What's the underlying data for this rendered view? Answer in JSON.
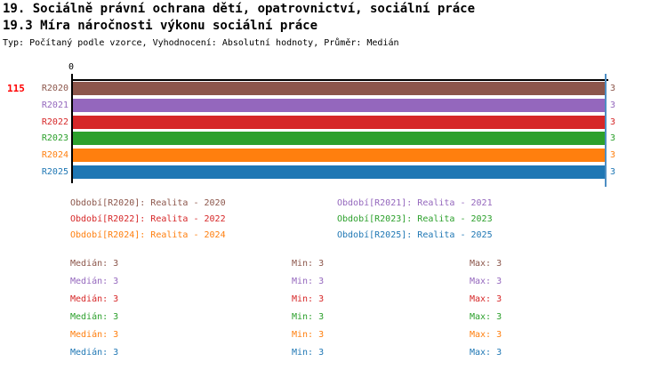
{
  "header": {
    "title_line1": "19. Sociálně právní ochrana dětí, opatrovnictví, sociální práce",
    "title_line2": "19.3 Míra náročnosti výkonu sociální práce",
    "meta_line": "Typ: Počítaný podle vzorce, Vyhodnocení: Absolutní hodnoty, Průměr: Medián"
  },
  "indicator_number": "115",
  "palette": [
    "#8c564b",
    "#9467bd",
    "#d62728",
    "#2ca02c",
    "#ff7f0e",
    "#1f77b4"
  ],
  "colors": {
    "indicator_number": "#ff0000",
    "axis": "#000000",
    "max_guide_line": "#4d8ec3",
    "background": "#ffffff"
  },
  "axis": {
    "zero_label": "0"
  },
  "chart_data": {
    "type": "bar",
    "orientation": "horizontal",
    "title": "19.3 Míra náročnosti výkonu sociální práce",
    "categories": [
      "R2020",
      "R2021",
      "R2022",
      "R2023",
      "R2024",
      "R2025"
    ],
    "values": [
      3,
      3,
      3,
      3,
      3,
      3
    ],
    "xlim": [
      0,
      3
    ],
    "x_tick_labels": [
      "0"
    ],
    "grid": false,
    "legend_position": "bottom",
    "series_stats": [
      {
        "category": "R2020",
        "median": 3,
        "min": 3,
        "max": 3
      },
      {
        "category": "R2021",
        "median": 3,
        "min": 3,
        "max": 3
      },
      {
        "category": "R2022",
        "median": 3,
        "min": 3,
        "max": 3
      },
      {
        "category": "R2023",
        "median": 3,
        "min": 3,
        "max": 3
      },
      {
        "category": "R2024",
        "median": 3,
        "min": 3,
        "max": 3
      },
      {
        "category": "R2025",
        "median": 3,
        "min": 3,
        "max": 3
      }
    ]
  },
  "legend": {
    "items": [
      {
        "label": "Období[R2020]: Realita - 2020"
      },
      {
        "label": "Období[R2021]: Realita - 2021"
      },
      {
        "label": "Období[R2022]: Realita - 2022"
      },
      {
        "label": "Období[R2023]: Realita - 2023"
      },
      {
        "label": "Období[R2024]: Realita - 2024"
      },
      {
        "label": "Období[R2025]: Realita - 2025"
      }
    ]
  },
  "stats_table": {
    "rows": [
      {
        "median": "Medián: 3",
        "min": "Min: 3",
        "max": "Max: 3"
      },
      {
        "median": "Medián: 3",
        "min": "Min: 3",
        "max": "Max: 3"
      },
      {
        "median": "Medián: 3",
        "min": "Min: 3",
        "max": "Max: 3"
      },
      {
        "median": "Medián: 3",
        "min": "Min: 3",
        "max": "Max: 3"
      },
      {
        "median": "Medián: 3",
        "min": "Min: 3",
        "max": "Max: 3"
      },
      {
        "median": "Medián: 3",
        "min": "Min: 3",
        "max": "Max: 3"
      }
    ]
  }
}
